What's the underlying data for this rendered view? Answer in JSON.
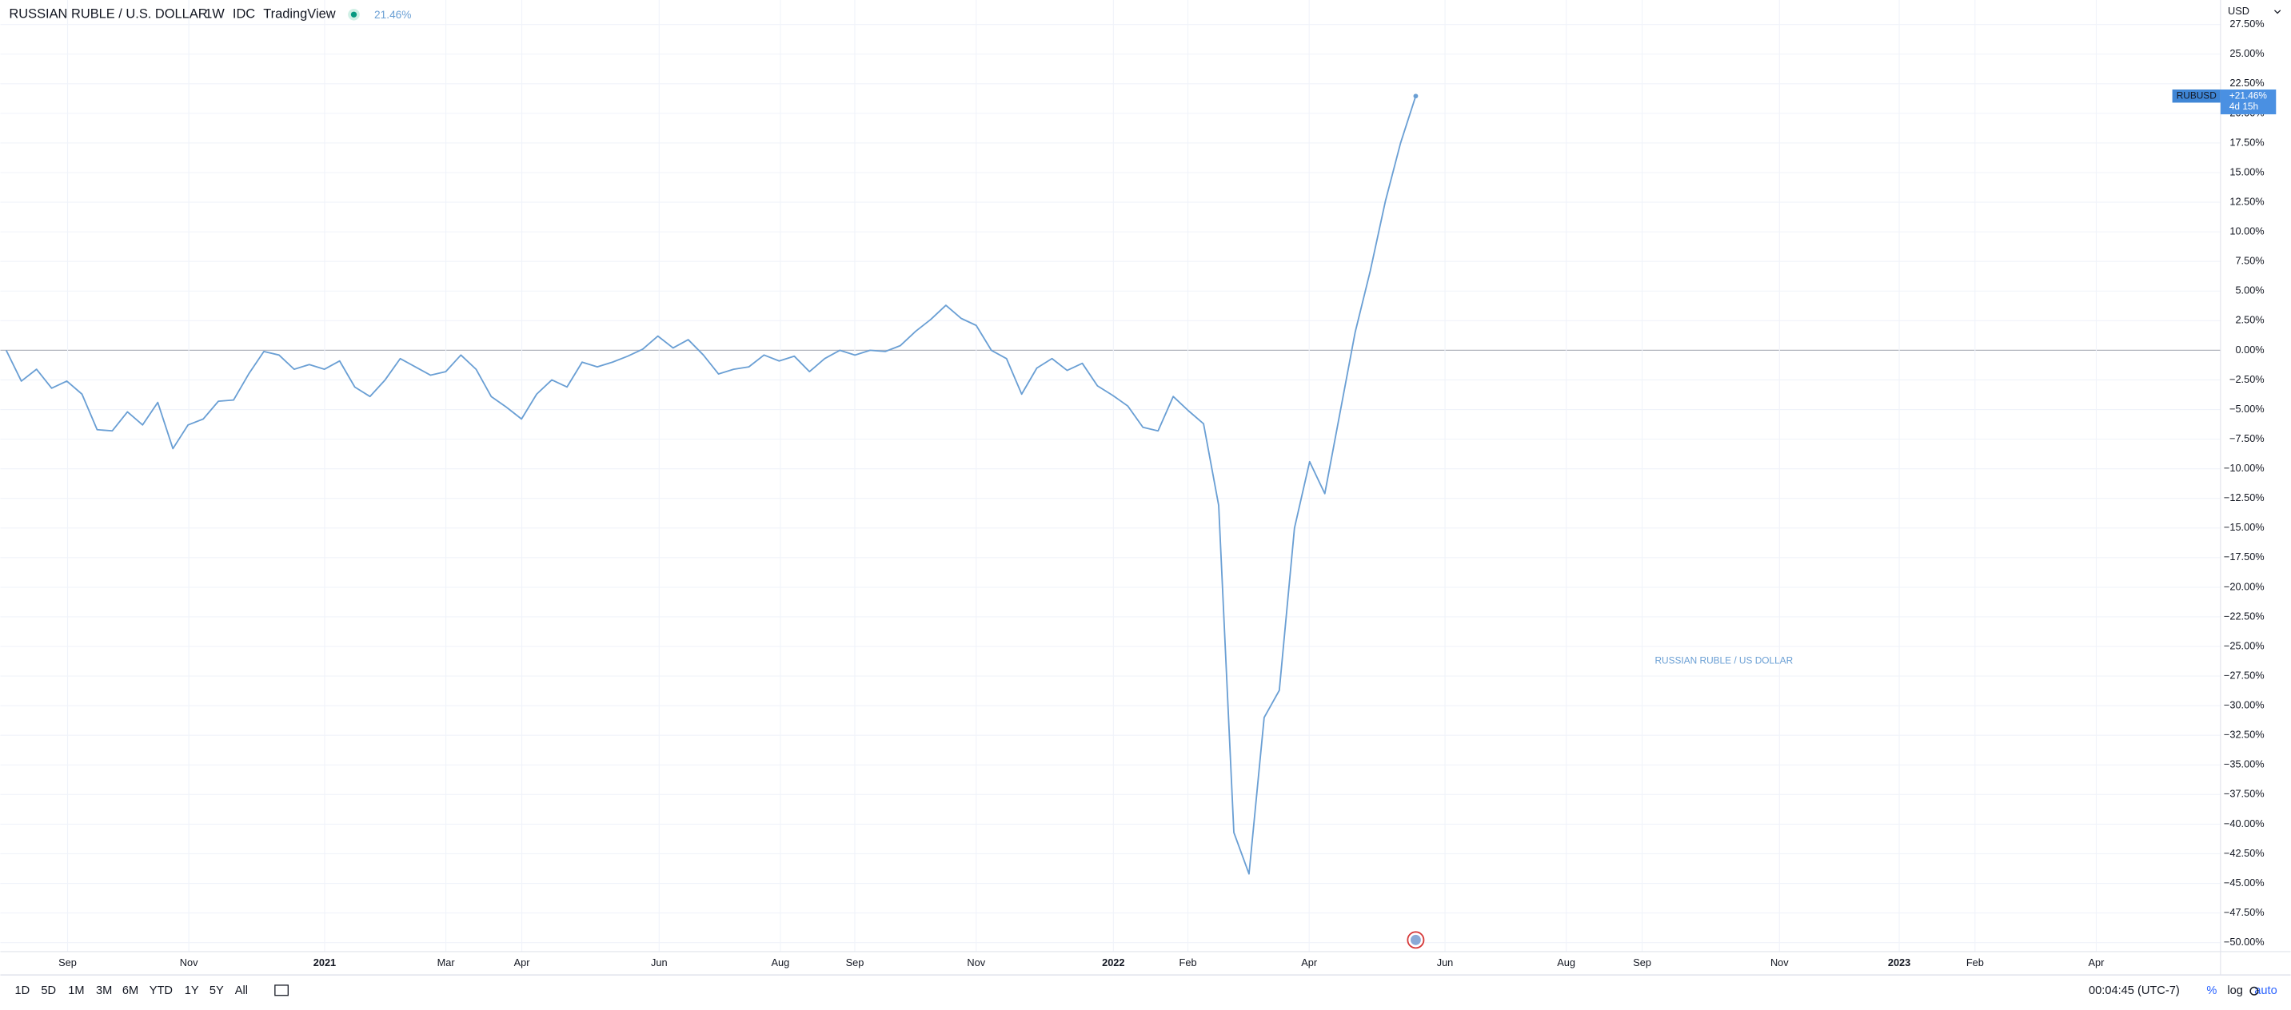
{
  "chart_data": {
    "type": "line",
    "title": "RUSSIAN RUBLE / U.S. DOLLAR",
    "watermark": "RUSSIAN RUBLE / US DOLLAR",
    "currency": "USD",
    "series": [
      {
        "name": "RUBUSD",
        "color": "#6a9fd4",
        "values": [
          0,
          -2.6,
          -1.6,
          -3.2,
          -2.6,
          -3.7,
          -6.7,
          -6.8,
          -5.2,
          -6.3,
          -4.4,
          -8.3,
          -6.3,
          -5.8,
          -4.3,
          -4.2,
          -2.0,
          -0.1,
          -0.4,
          -1.6,
          -1.2,
          -1.6,
          -0.9,
          -3.1,
          -3.9,
          -2.5,
          -0.7,
          -1.4,
          -2.1,
          -1.8,
          -0.4,
          -1.6,
          -3.9,
          -4.8,
          -5.8,
          -3.7,
          -2.5,
          -3.1,
          -1.0,
          -1.4,
          -1.0,
          -0.5,
          0.1,
          1.2,
          0.2,
          0.9,
          -0.4,
          -2.0,
          -1.6,
          -1.4,
          -0.4,
          -0.9,
          -0.5,
          -1.8,
          -0.7,
          0,
          -0.4,
          0,
          -0.1,
          0.4,
          1.6,
          2.6,
          3.8,
          2.7,
          2.1,
          0,
          -0.7,
          -3.7,
          -1.5,
          -0.7,
          -1.7,
          -1.1,
          -3.0,
          -3.8,
          -4.7,
          -6.5,
          -6.8,
          -3.9,
          -5.1,
          -6.2,
          -13.1,
          -40.7,
          -44.2,
          -31.0,
          -28.7,
          -15.0,
          -9.4,
          -12.1,
          -5.3,
          1.5,
          6.7,
          12.6,
          17.5,
          21.46
        ]
      }
    ],
    "last_value_label": "21.46%",
    "badge": {
      "change": "+21.46%",
      "countdown": "4d 15h"
    },
    "xlim": [
      -0.385,
      146.1
    ],
    "xticks": [
      {
        "value": 4.05,
        "label": "Sep"
      },
      {
        "value": 12.05,
        "label": "Nov"
      },
      {
        "value": 21.01,
        "label": "2021"
      },
      {
        "value": 29.01,
        "label": "Mar"
      },
      {
        "value": 34.02,
        "label": "Apr"
      },
      {
        "value": 43.08,
        "label": "Jun"
      },
      {
        "value": 51.08,
        "label": "Aug"
      },
      {
        "value": 55.99,
        "label": "Sep"
      },
      {
        "value": 64.0,
        "label": "Nov"
      },
      {
        "value": 73.05,
        "label": "2022"
      },
      {
        "value": 77.97,
        "label": "Feb"
      },
      {
        "value": 85.97,
        "label": "Apr"
      },
      {
        "value": 94.93,
        "label": "Jun"
      },
      {
        "value": 102.93,
        "label": "Aug"
      },
      {
        "value": 107.94,
        "label": "Sep"
      },
      {
        "value": 117.0,
        "label": "Nov"
      },
      {
        "value": 124.9,
        "label": "2023"
      },
      {
        "value": 129.9,
        "label": "Feb"
      },
      {
        "value": 137.9,
        "label": "Apr"
      }
    ],
    "ylim": [
      -50.76,
      29.57
    ],
    "yticks": [
      {
        "value": 27.5,
        "label": "27.50%"
      },
      {
        "value": 25,
        "label": "25.00%"
      },
      {
        "value": 22.5,
        "label": "22.50%"
      },
      {
        "value": 20,
        "label": "20.00%"
      },
      {
        "value": 17.5,
        "label": "17.50%"
      },
      {
        "value": 15,
        "label": "15.00%"
      },
      {
        "value": 12.5,
        "label": "12.50%"
      },
      {
        "value": 10,
        "label": "10.00%"
      },
      {
        "value": 7.5,
        "label": "7.50%"
      },
      {
        "value": 5,
        "label": "5.00%"
      },
      {
        "value": 2.5,
        "label": "2.50%"
      },
      {
        "value": 0,
        "label": "0.00%"
      },
      {
        "value": -2.5,
        "label": "−2.50%"
      },
      {
        "value": -5,
        "label": "−5.00%"
      },
      {
        "value": -7.5,
        "label": "−7.50%"
      },
      {
        "value": -10,
        "label": "−10.00%"
      },
      {
        "value": -12.5,
        "label": "−12.50%"
      },
      {
        "value": -15,
        "label": "−15.00%"
      },
      {
        "value": -17.5,
        "label": "−17.50%"
      },
      {
        "value": -20,
        "label": "−20.00%"
      },
      {
        "value": -22.5,
        "label": "−22.50%"
      },
      {
        "value": -25,
        "label": "−25.00%"
      },
      {
        "value": -27.5,
        "label": "−27.50%"
      },
      {
        "value": -30,
        "label": "−30.00%"
      },
      {
        "value": -32.5,
        "label": "−32.50%"
      },
      {
        "value": -35,
        "label": "−35.00%"
      },
      {
        "value": -37.5,
        "label": "−37.50%"
      },
      {
        "value": -40,
        "label": "−40.00%"
      },
      {
        "value": -42.5,
        "label": "−42.50%"
      },
      {
        "value": -45,
        "label": "−45.00%"
      },
      {
        "value": -47.5,
        "label": "−47.50%"
      },
      {
        "value": -50,
        "label": "−50.00%"
      }
    ],
    "grid": true
  },
  "header": {
    "interval": "1W",
    "exchange": "IDC",
    "source": "TradingView"
  },
  "toolbar": {
    "ranges": [
      "1D",
      "5D",
      "1M",
      "3M",
      "6M",
      "YTD",
      "1Y",
      "5Y",
      "All"
    ],
    "clock": "00:04:45 (UTC-7)",
    "percent": "%",
    "log": "log",
    "auto": "auto"
  }
}
